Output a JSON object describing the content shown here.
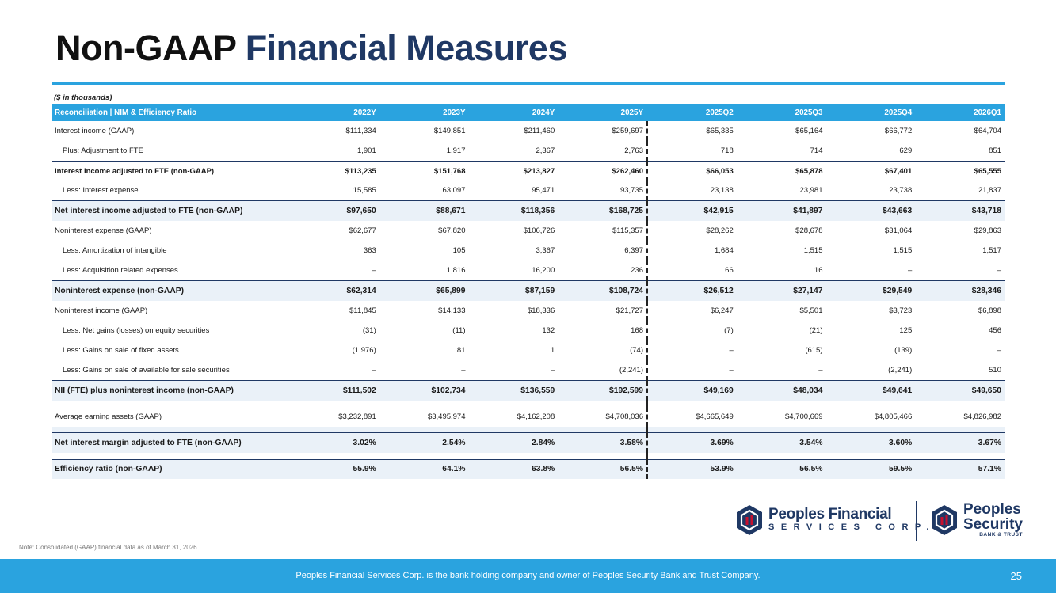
{
  "title": {
    "part1": "Non-GAAP",
    "part2": "Financial Measures"
  },
  "units_note": "($ in thousands)",
  "table": {
    "header": {
      "label": "Reconciliation | NIM & Efficiency Ratio",
      "columns": [
        "2022Y",
        "2023Y",
        "2024Y",
        "2025Y",
        "2025Q2",
        "2025Q3",
        "2025Q4",
        "2026Q1"
      ]
    },
    "rows": [
      {
        "label": "Interest income (GAAP)",
        "values": [
          "$111,334",
          "$149,851",
          "$211,460",
          "$259,697",
          "$65,335",
          "$65,164",
          "$66,772",
          "$64,704"
        ]
      },
      {
        "label": "Plus: Adjustment to FTE",
        "values": [
          "1,901",
          "1,917",
          "2,367",
          "2,763",
          "718",
          "714",
          "629",
          "851"
        ]
      },
      {
        "label": "Interest income adjusted to FTE (non-GAAP)",
        "values": [
          "$113,235",
          "$151,768",
          "$213,827",
          "$262,460",
          "$66,053",
          "$65,878",
          "$67,401",
          "$65,555"
        ]
      },
      {
        "label": "Less: Interest expense",
        "values": [
          "15,585",
          "63,097",
          "95,471",
          "93,735",
          "23,138",
          "23,981",
          "23,738",
          "21,837"
        ]
      },
      {
        "label": "Net interest income adjusted to FTE (non-GAAP)",
        "values": [
          "$97,650",
          "$88,671",
          "$118,356",
          "$168,725",
          "$42,915",
          "$41,897",
          "$43,663",
          "$43,718"
        ]
      },
      {
        "label": "Noninterest expense (GAAP)",
        "values": [
          "$62,677",
          "$67,820",
          "$106,726",
          "$115,357",
          "$28,262",
          "$28,678",
          "$31,064",
          "$29,863"
        ]
      },
      {
        "label": "Less: Amortization of intangible",
        "values": [
          "363",
          "105",
          "3,367",
          "6,397",
          "1,684",
          "1,515",
          "1,515",
          "1,517"
        ]
      },
      {
        "label": "Less: Acquisition related expenses",
        "values": [
          "–",
          "1,816",
          "16,200",
          "236",
          "66",
          "16",
          "–",
          "–"
        ]
      },
      {
        "label": "Noninterest expense (non-GAAP)",
        "values": [
          "$62,314",
          "$65,899",
          "$87,159",
          "$108,724",
          "$26,512",
          "$27,147",
          "$29,549",
          "$28,346"
        ]
      },
      {
        "label": "Noninterest income (GAAP)",
        "values": [
          "$11,845",
          "$14,133",
          "$18,336",
          "$21,727",
          "$6,247",
          "$5,501",
          "$3,723",
          "$6,898"
        ]
      },
      {
        "label": "Less: Net gains (losses) on equity securities",
        "values": [
          "(31)",
          "(11)",
          "132",
          "168",
          "(7)",
          "(21)",
          "125",
          "456"
        ]
      },
      {
        "label": "Less: Gains on sale of fixed assets",
        "values": [
          "(1,976)",
          "81",
          "1",
          "(74)",
          "–",
          "(615)",
          "(139)",
          "–"
        ]
      },
      {
        "label": "Less: Gains on sale of available for sale securities",
        "values": [
          "–",
          "–",
          "–",
          "(2,241)",
          "–",
          "–",
          "(2,241)",
          "510"
        ]
      },
      {
        "label": "NII (FTE) plus noninterest income (non-GAAP)",
        "values": [
          "$111,502",
          "$102,734",
          "$136,559",
          "$192,599",
          "$49,169",
          "$48,034",
          "$49,641",
          "$49,650"
        ]
      },
      {
        "label": "Average earning assets (GAAP)",
        "values": [
          "$3,232,891",
          "$3,495,974",
          "$4,162,208",
          "$4,708,036",
          "$4,665,649",
          "$4,700,669",
          "$4,805,466",
          "$4,826,982"
        ]
      },
      {
        "label": "Net interest margin adjusted to FTE (non-GAAP)",
        "values": [
          "3.02%",
          "2.54%",
          "2.84%",
          "3.58%",
          "3.69%",
          "3.54%",
          "3.60%",
          "3.67%"
        ]
      },
      {
        "label": "Efficiency ratio (non-GAAP)",
        "values": [
          "55.9%",
          "64.1%",
          "63.8%",
          "56.5%",
          "53.9%",
          "56.5%",
          "59.5%",
          "57.1%"
        ]
      }
    ]
  },
  "note": "Note: Consolidated (GAAP) financial data as of March 31, 2026",
  "logos": {
    "financial": {
      "name": "Peoples Financial",
      "sub": "SERVICES CORP."
    },
    "security": {
      "name_line1": "Peoples",
      "name_line2": "Security",
      "sub": "BANK & TRUST"
    }
  },
  "footer": {
    "text": "Peoples Financial Services Corp. is the bank holding company and owner of Peoples Security Bank and Trust Company.",
    "page": "25"
  },
  "colors": {
    "accent": "#2aa3df",
    "navy": "#1f3864",
    "row_highlight": "#eaf1f8"
  }
}
